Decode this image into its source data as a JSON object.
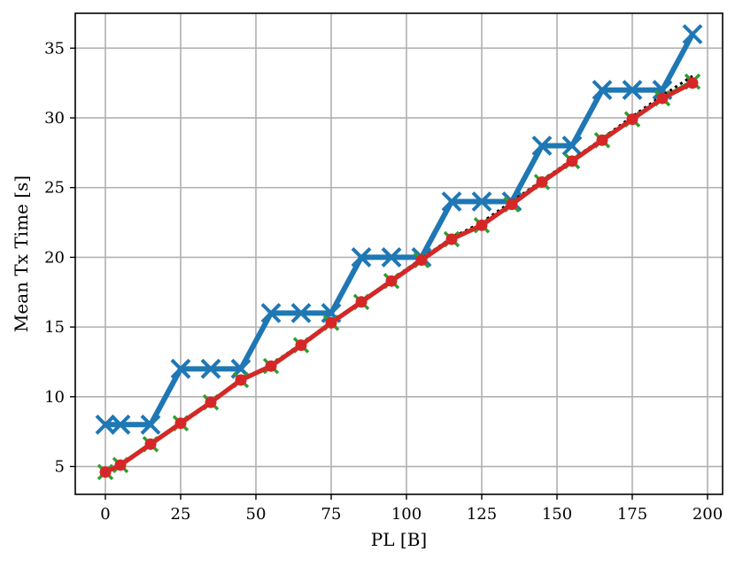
{
  "chart_data": {
    "type": "line",
    "title": "",
    "xlabel": "PL [B]",
    "ylabel": "Mean Tx Time [s]",
    "xlim": [
      -10,
      205
    ],
    "ylim": [
      3,
      37.5
    ],
    "xticks": [
      0,
      25,
      50,
      75,
      100,
      125,
      150,
      175,
      200
    ],
    "yticks": [
      5,
      10,
      15,
      20,
      25,
      30,
      35
    ],
    "grid": true,
    "legend": "none",
    "x": [
      0,
      5,
      15,
      25,
      35,
      45,
      55,
      65,
      75,
      85,
      95,
      105,
      115,
      125,
      135,
      145,
      155,
      165,
      175,
      185,
      195
    ],
    "series": [
      {
        "color": "#1f77b4",
        "marker": "x",
        "linestyle": "solid",
        "values": [
          8,
          8,
          8,
          12,
          12,
          12,
          16,
          16,
          16,
          20,
          20,
          20,
          24,
          24,
          24,
          28,
          28,
          32,
          32,
          32,
          36
        ]
      },
      {
        "color": "#2ca02c",
        "marker": "x",
        "linestyle": "solid",
        "values": [
          4.6,
          5.1,
          6.6,
          8.1,
          9.6,
          11.2,
          12.2,
          13.7,
          15.3,
          16.8,
          18.3,
          19.8,
          21.3,
          22.3,
          23.8,
          25.4,
          26.9,
          28.4,
          29.9,
          31.4,
          32.6
        ]
      },
      {
        "color": "#000000",
        "marker": "none",
        "linestyle": "dotted",
        "values": [
          4.6,
          5.1,
          6.6,
          8.1,
          9.6,
          11.2,
          12.3,
          13.8,
          15.3,
          16.8,
          18.4,
          19.9,
          21.4,
          22.5,
          24.0,
          25.5,
          27.0,
          28.5,
          30.1,
          31.6,
          33.0
        ]
      },
      {
        "color": "#d62728",
        "marker": "o",
        "linestyle": "solid",
        "values": [
          4.6,
          5.1,
          6.6,
          8.1,
          9.6,
          11.2,
          12.2,
          13.7,
          15.3,
          16.8,
          18.3,
          19.8,
          21.3,
          22.3,
          23.8,
          25.4,
          26.9,
          28.4,
          29.9,
          31.4,
          32.5
        ]
      }
    ]
  }
}
